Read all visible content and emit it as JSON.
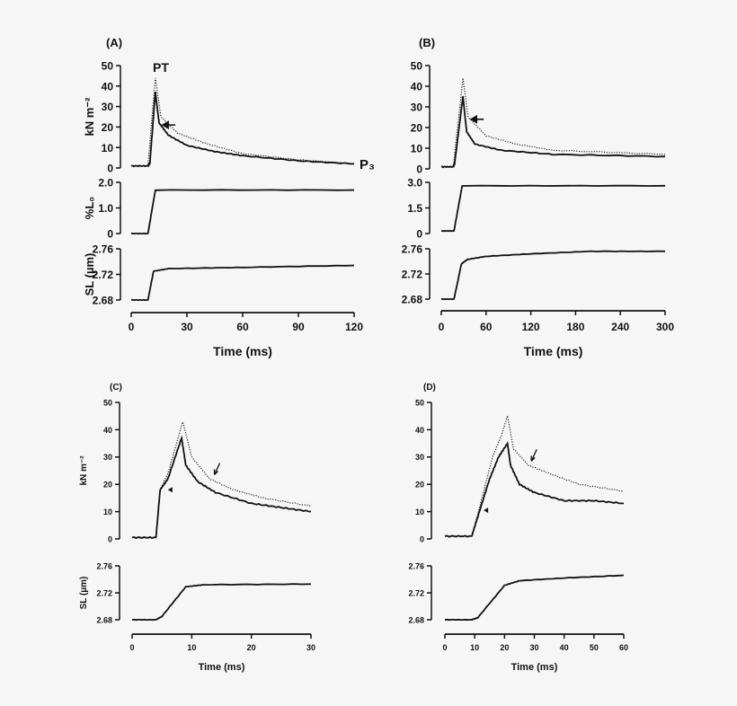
{
  "chart_data": [
    {
      "type": "line",
      "panel_label": "(A)",
      "xlabel": "Time (ms)",
      "xlim": [
        0,
        120
      ],
      "xticks": [
        0,
        30,
        60,
        90,
        120
      ],
      "annotations": {
        "peak": "PT",
        "end": "P₃"
      },
      "arrows": [
        {
          "kind": "arrow-left",
          "x": 17,
          "y": 21
        }
      ],
      "subplots": [
        {
          "ylabel": "kN m⁻²",
          "ylim": [
            0,
            50
          ],
          "yticks": [
            "0",
            "10",
            "20",
            "30",
            "40",
            "50"
          ],
          "ytick_values": [
            0,
            10,
            20,
            30,
            40,
            50
          ],
          "series": [
            {
              "style": "solid",
              "points": [
                [
                  0,
                  1
                ],
                [
                  9,
                  1
                ],
                [
                  10,
                  2
                ],
                [
                  13,
                  37
                ],
                [
                  15,
                  22
                ],
                [
                  20,
                  16
                ],
                [
                  30,
                  11
                ],
                [
                  45,
                  8
                ],
                [
                  60,
                  6
                ],
                [
                  90,
                  3.5
                ],
                [
                  120,
                  2
                ]
              ]
            },
            {
              "style": "dotted",
              "points": [
                [
                  0,
                  1
                ],
                [
                  9,
                  1
                ],
                [
                  13,
                  44
                ],
                [
                  16,
                  25
                ],
                [
                  25,
                  17
                ],
                [
                  40,
                  12
                ],
                [
                  60,
                  7
                ],
                [
                  90,
                  4
                ],
                [
                  120,
                  2
                ]
              ]
            }
          ]
        },
        {
          "ylabel": "%L₀",
          "ylim": [
            0,
            2
          ],
          "yticks": [
            "0",
            "1.0",
            "2.0"
          ],
          "ytick_values": [
            0,
            1,
            2
          ],
          "series": [
            {
              "style": "solid",
              "points": [
                [
                  0,
                  0
                ],
                [
                  9,
                  0
                ],
                [
                  13,
                  1.7
                ],
                [
                  120,
                  1.7
                ]
              ]
            }
          ]
        },
        {
          "ylabel": "SL (µm)",
          "ylim": [
            2.68,
            2.76
          ],
          "yticks": [
            "2.68",
            "2.72",
            "2.76"
          ],
          "ytick_values": [
            2.68,
            2.72,
            2.76
          ],
          "series": [
            {
              "style": "solid",
              "points": [
                [
                  0,
                  2.68
                ],
                [
                  9,
                  2.68
                ],
                [
                  12,
                  2.725
                ],
                [
                  20,
                  2.729
                ],
                [
                  60,
                  2.731
                ],
                [
                  120,
                  2.734
                ]
              ]
            }
          ]
        }
      ]
    },
    {
      "type": "line",
      "panel_label": "(B)",
      "xlabel": "Time (ms)",
      "xlim": [
        0,
        300
      ],
      "xticks": [
        0,
        60,
        120,
        180,
        240,
        300
      ],
      "arrows": [
        {
          "kind": "arrow-left",
          "x": 40,
          "y": 24
        }
      ],
      "subplots": [
        {
          "ylabel": "",
          "ylim": [
            0,
            50
          ],
          "yticks": [
            "0",
            "10",
            "20",
            "30",
            "40",
            "50"
          ],
          "ytick_values": [
            0,
            10,
            20,
            30,
            40,
            50
          ],
          "series": [
            {
              "style": "solid",
              "points": [
                [
                  0,
                  1
                ],
                [
                  16,
                  1
                ],
                [
                  18,
                  3
                ],
                [
                  29,
                  35
                ],
                [
                  34,
                  18
                ],
                [
                  45,
                  12
                ],
                [
                  80,
                  9
                ],
                [
                  150,
                  7
                ],
                [
                  300,
                  6
                ]
              ]
            },
            {
              "style": "dotted",
              "points": [
                [
                  0,
                  1
                ],
                [
                  16,
                  1
                ],
                [
                  29,
                  44
                ],
                [
                  36,
                  25
                ],
                [
                  60,
                  16
                ],
                [
                  100,
                  12
                ],
                [
                  150,
                  9
                ],
                [
                  300,
                  7
                ]
              ]
            }
          ]
        },
        {
          "ylabel": "",
          "ylim": [
            0,
            3
          ],
          "yticks": [
            "0",
            "1.5",
            "3.0"
          ],
          "ytick_values": [
            0,
            1.5,
            3
          ],
          "series": [
            {
              "style": "solid",
              "points": [
                [
                  0,
                  0.15
                ],
                [
                  17,
                  0.15
                ],
                [
                  28,
                  2.8
                ],
                [
                  300,
                  2.8
                ]
              ]
            }
          ]
        },
        {
          "ylabel": "",
          "ylim": [
            2.68,
            2.76
          ],
          "yticks": [
            "2.68",
            "2.72",
            "2.76"
          ],
          "ytick_values": [
            2.68,
            2.72,
            2.76
          ],
          "series": [
            {
              "style": "solid",
              "points": [
                [
                  0,
                  2.68
                ],
                [
                  17,
                  2.68
                ],
                [
                  27,
                  2.736
                ],
                [
                  35,
                  2.743
                ],
                [
                  60,
                  2.748
                ],
                [
                  120,
                  2.752
                ],
                [
                  200,
                  2.756
                ],
                [
                  300,
                  2.756
                ]
              ]
            }
          ]
        }
      ]
    },
    {
      "type": "line",
      "panel_label": "(C)",
      "xlabel": "Time (ms)",
      "xlim": [
        0,
        30
      ],
      "xticks": [
        0,
        10,
        20,
        30
      ],
      "arrows": [
        {
          "kind": "arrowhead-left",
          "x": 6,
          "y": 18
        },
        {
          "kind": "arrow-down-left",
          "x": 13.8,
          "y": 23.5
        }
      ],
      "subplots": [
        {
          "ylabel": "kN m⁻²",
          "ylim": [
            0,
            50
          ],
          "yticks": [
            "0",
            "10",
            "20",
            "30",
            "40",
            "50"
          ],
          "ytick_values": [
            0,
            10,
            20,
            30,
            40,
            50
          ],
          "series": [
            {
              "style": "solid",
              "points": [
                [
                  0,
                  0.5
                ],
                [
                  4,
                  0.5
                ],
                [
                  4.7,
                  18
                ],
                [
                  6,
                  22
                ],
                [
                  8.3,
                  37
                ],
                [
                  9,
                  27
                ],
                [
                  11,
                  21
                ],
                [
                  14,
                  17
                ],
                [
                  20,
                  13
                ],
                [
                  25,
                  11.5
                ],
                [
                  30,
                  10
                ]
              ]
            },
            {
              "style": "dotted",
              "points": [
                [
                  0,
                  0.5
                ],
                [
                  4,
                  0.5
                ],
                [
                  4.7,
                  18
                ],
                [
                  6,
                  24
                ],
                [
                  8.5,
                  43
                ],
                [
                  10,
                  30
                ],
                [
                  13,
                  22
                ],
                [
                  17,
                  18
                ],
                [
                  22,
                  15
                ],
                [
                  30,
                  12
                ]
              ]
            }
          ]
        },
        {
          "ylabel": "SL (µm)",
          "ylim": [
            2.68,
            2.76
          ],
          "yticks": [
            "2.68",
            "2.72",
            "2.76"
          ],
          "ytick_values": [
            2.68,
            2.72,
            2.76
          ],
          "series": [
            {
              "style": "solid",
              "points": [
                [
                  0,
                  2.68
                ],
                [
                  4,
                  2.68
                ],
                [
                  5,
                  2.685
                ],
                [
                  9,
                  2.729
                ],
                [
                  12,
                  2.732
                ],
                [
                  30,
                  2.733
                ]
              ]
            }
          ]
        }
      ]
    },
    {
      "type": "line",
      "panel_label": "(D)",
      "xlabel": "Time (ms)",
      "xlim": [
        0,
        60
      ],
      "xticks": [
        0,
        10,
        20,
        30,
        40,
        50,
        60
      ],
      "arrows": [
        {
          "kind": "arrowhead-left",
          "x": 13,
          "y": 10.5
        },
        {
          "kind": "arrow-down-left",
          "x": 29,
          "y": 28.5
        }
      ],
      "subplots": [
        {
          "ylabel": "",
          "ylim": [
            0,
            50
          ],
          "yticks": [
            "0",
            "10",
            "20",
            "30",
            "40",
            "50"
          ],
          "ytick_values": [
            0,
            10,
            20,
            30,
            40,
            50
          ],
          "series": [
            {
              "style": "solid",
              "points": [
                [
                  0,
                  1
                ],
                [
                  9,
                  1
                ],
                [
                  11,
                  8
                ],
                [
                  15,
                  22
                ],
                [
                  18,
                  30
                ],
                [
                  21,
                  35
                ],
                [
                  22,
                  27
                ],
                [
                  25,
                  20
                ],
                [
                  30,
                  17
                ],
                [
                  40,
                  14
                ],
                [
                  50,
                  14
                ],
                [
                  60,
                  13
                ]
              ]
            },
            {
              "style": "dotted",
              "points": [
                [
                  0,
                  1
                ],
                [
                  9,
                  1
                ],
                [
                  11,
                  9
                ],
                [
                  16,
                  30
                ],
                [
                  19,
                  38
                ],
                [
                  21,
                  45
                ],
                [
                  23,
                  33
                ],
                [
                  28,
                  27
                ],
                [
                  35,
                  24
                ],
                [
                  45,
                  20
                ],
                [
                  60,
                  17.5
                ]
              ]
            }
          ]
        },
        {
          "ylabel": "",
          "ylim": [
            2.68,
            2.76
          ],
          "yticks": [
            "2.68",
            "2.72",
            "2.76"
          ],
          "ytick_values": [
            2.68,
            2.72,
            2.76
          ],
          "series": [
            {
              "style": "solid",
              "points": [
                [
                  0,
                  2.68
                ],
                [
                  9,
                  2.68
                ],
                [
                  11,
                  2.683
                ],
                [
                  20,
                  2.731
                ],
                [
                  25,
                  2.738
                ],
                [
                  40,
                  2.742
                ],
                [
                  60,
                  2.746
                ]
              ]
            }
          ]
        }
      ]
    }
  ]
}
